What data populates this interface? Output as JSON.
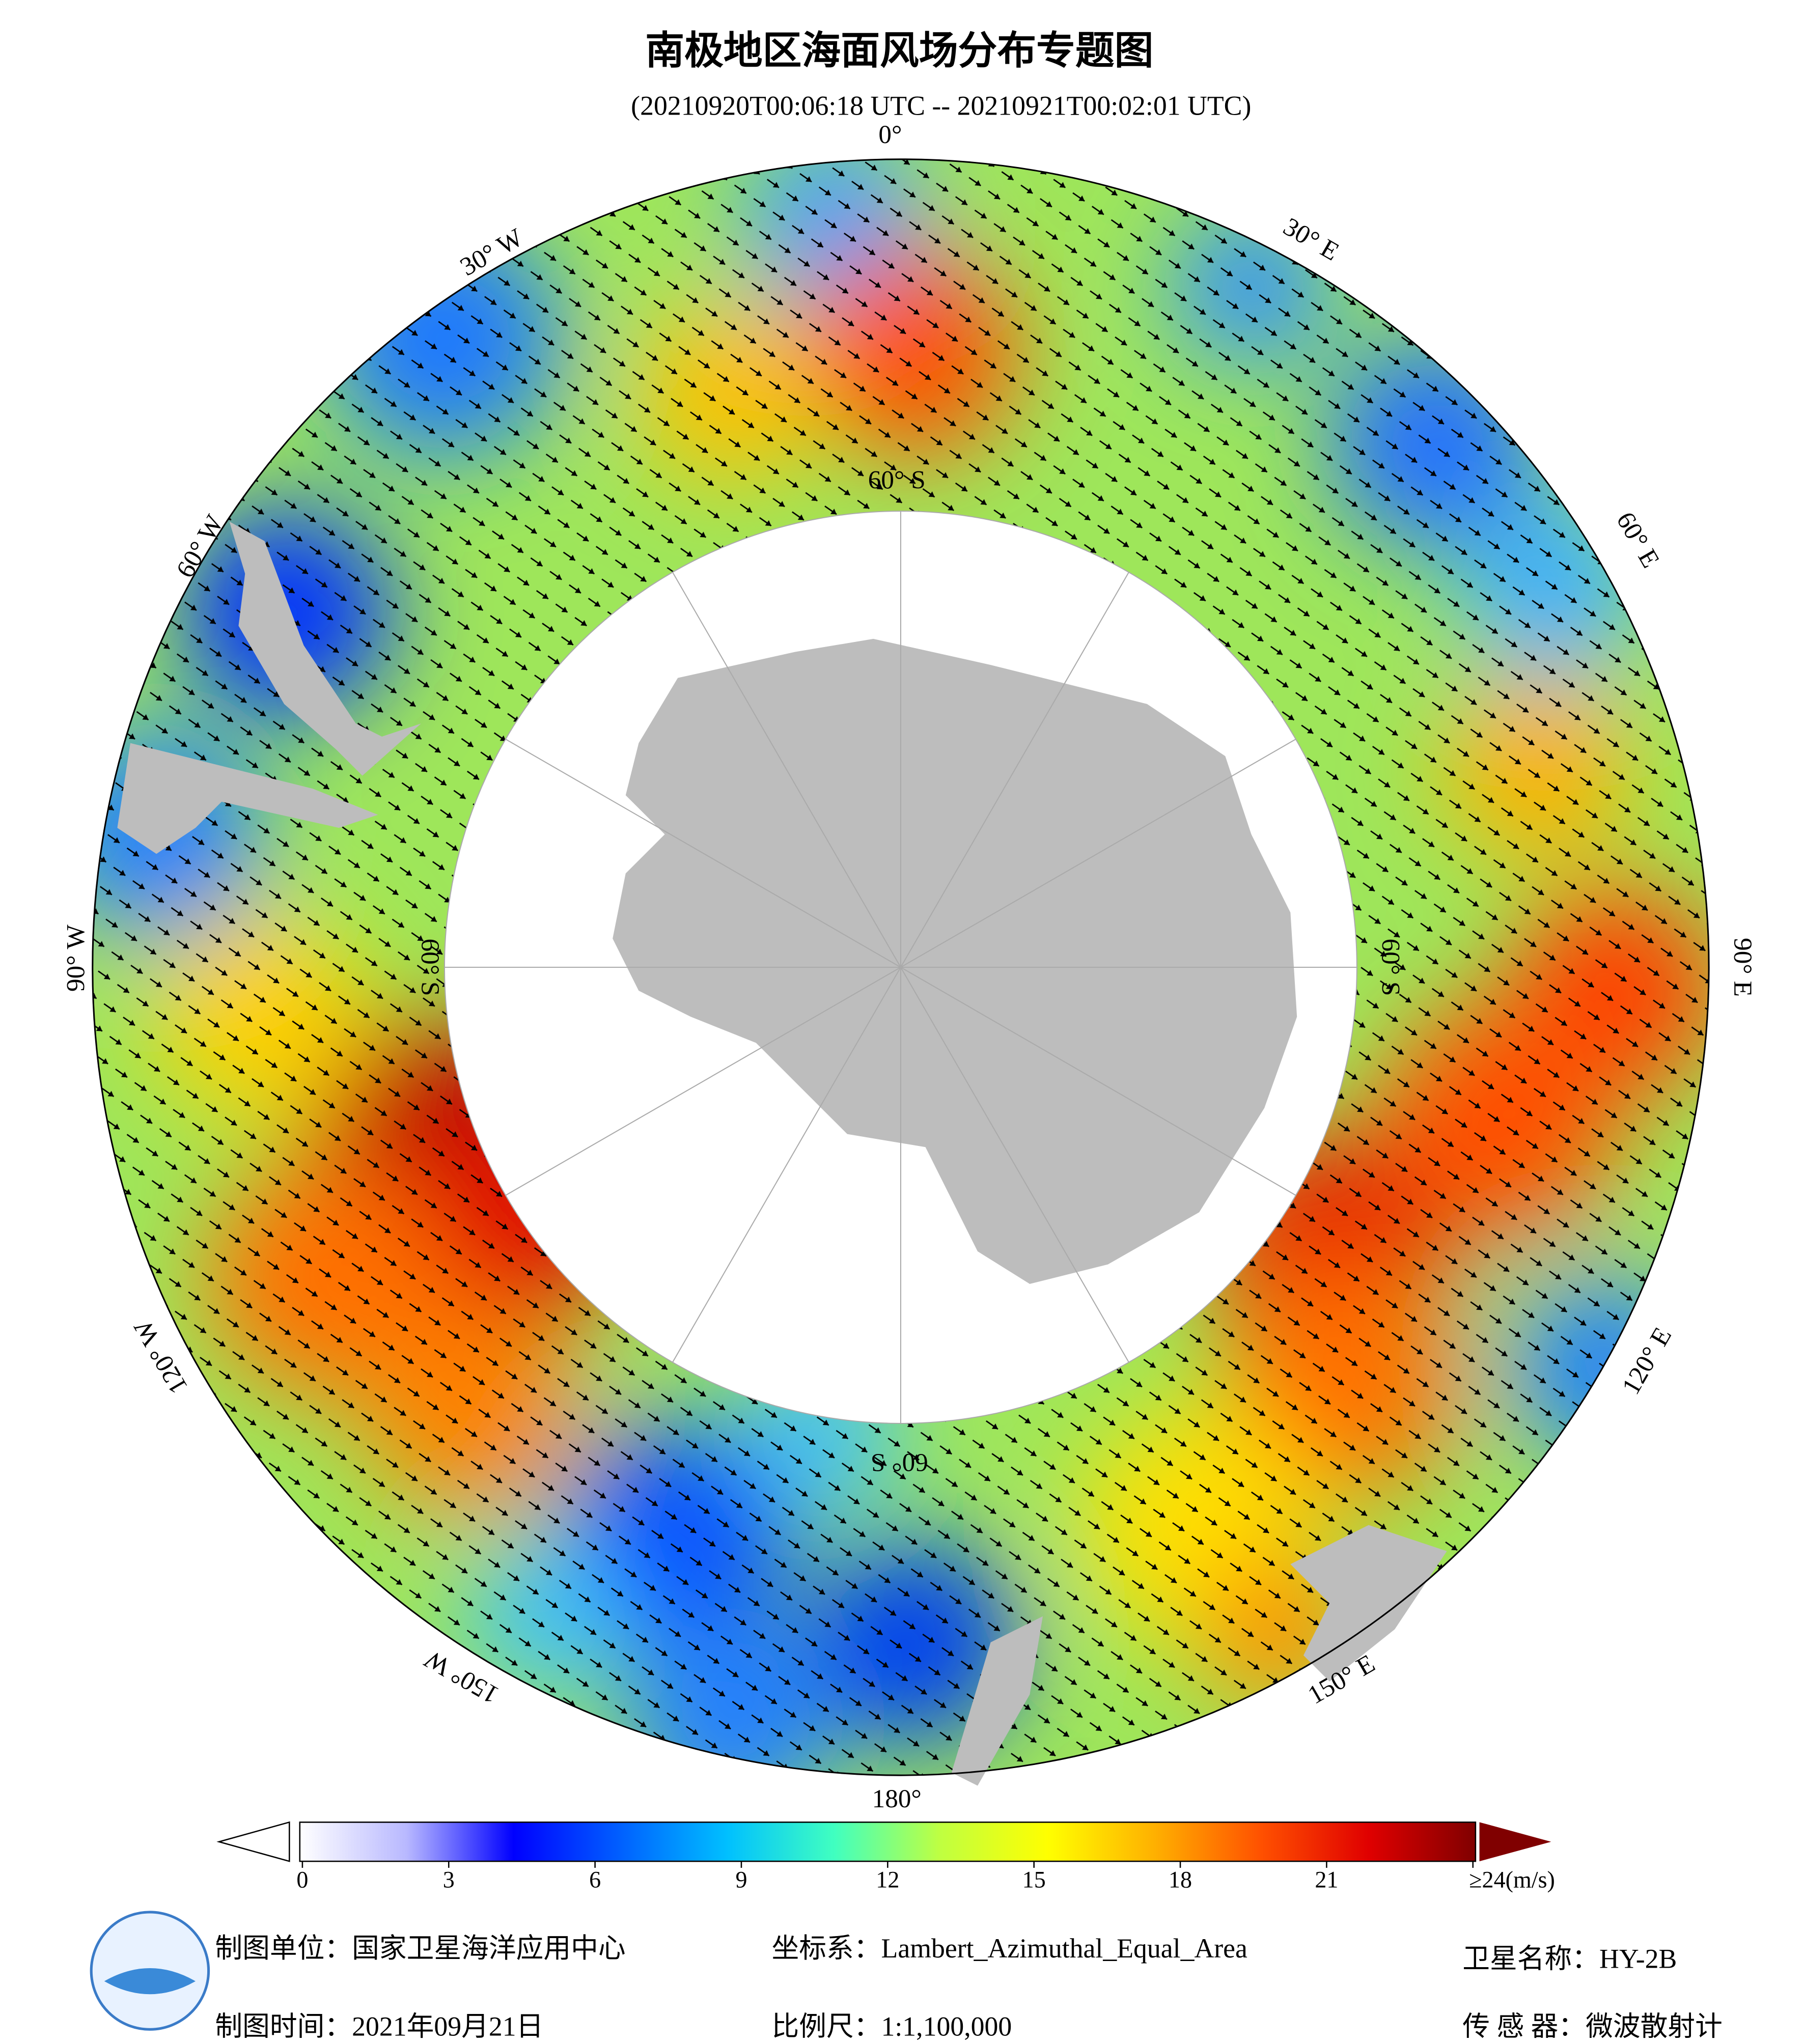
{
  "header": {
    "title": "南极地区海面风场分布专题图",
    "subtitle": "(20210920T00:06:18 UTC -- 20210921T00:02:01 UTC)"
  },
  "map": {
    "lon_labels": [
      "0°",
      "30° E",
      "60° E",
      "90° E",
      "120° E",
      "150° E",
      "180°",
      "150° W",
      "120° W",
      "90° W",
      "60° W",
      "30° W"
    ],
    "lat_label": "60° S"
  },
  "colorbar": {
    "lim": [
      0,
      24
    ],
    "ticks": [
      0,
      3,
      6,
      9,
      12,
      15,
      18,
      21,
      {
        "value": 24,
        "label": "≥24(m/s)"
      }
    ],
    "colors": [
      "#ffffff",
      "#b8b8ff",
      "#0000ff",
      "#0060ff",
      "#00c0ff",
      "#40ffc0",
      "#c0ff40",
      "#ffff00",
      "#ffb000",
      "#ff5000",
      "#e00000",
      "#800000"
    ]
  },
  "footer": {
    "unit": "制图单位：国家卫星海洋应用中心",
    "time": "制图时间：2021年09月21日",
    "crs": "坐标系：Lambert_Azimuthal_Equal_Area",
    "scale": "比例尺：1:1,100,000",
    "satellite": "卫星名称：HY-2B",
    "sensor": "传 感 器：微波散射计"
  }
}
